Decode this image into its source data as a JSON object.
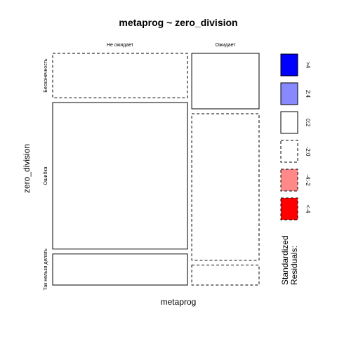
{
  "chart_data": {
    "type": "mosaic",
    "title": "metaprog ~ zero_division",
    "xlabel": "metaprog",
    "ylabel": "zero_division",
    "x_categories": [
      "Не ожидает",
      "Ожидает"
    ],
    "x_proportions": [
      0.667,
      0.333
    ],
    "y_categories": [
      "Бесконечность",
      "Ошибка",
      "Так нельзя делать"
    ],
    "cells": [
      {
        "x": "Не ожидает",
        "y": "Бесконечность",
        "proportion": 0.2,
        "residual_class": "-2:0"
      },
      {
        "x": "Не ожидает",
        "y": "Ошибка",
        "proportion": 0.66,
        "residual_class": "0:2"
      },
      {
        "x": "Не ожидает",
        "y": "Так нельзя делать",
        "proportion": 0.14,
        "residual_class": "0:2"
      },
      {
        "x": "Ожидает",
        "y": "Бесконечность",
        "proportion": 0.25,
        "residual_class": "0:2"
      },
      {
        "x": "Ожидает",
        "y": "Ошибка",
        "proportion": 0.66,
        "residual_class": "-2:0"
      },
      {
        "x": "Ожидает",
        "y": "Так нельзя делать",
        "proportion": 0.09,
        "residual_class": "-2:0"
      }
    ],
    "legend": {
      "title_lines": [
        "Standardized",
        "Residuals:"
      ],
      "items": [
        {
          "label": ">4",
          "fill": "#0000ff",
          "dashed": false
        },
        {
          "label": "2:4",
          "fill": "#8888ff",
          "dashed": false
        },
        {
          "label": "0:2",
          "fill": "#ffffff",
          "dashed": false
        },
        {
          "label": "-2:0",
          "fill": "#ffffff",
          "dashed": true
        },
        {
          "label": "-4:-2",
          "fill": "#ff8888",
          "dashed": true
        },
        {
          "label": "<-4",
          "fill": "#ff0000",
          "dashed": true
        }
      ]
    }
  }
}
